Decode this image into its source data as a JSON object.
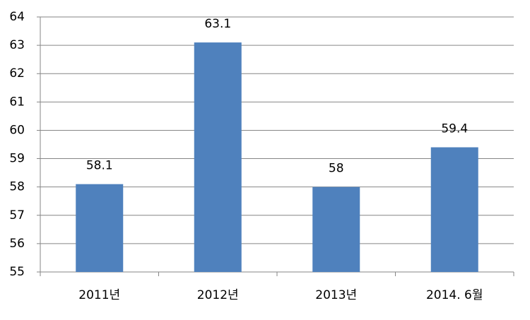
{
  "chart_data": {
    "type": "bar",
    "categories": [
      "2011년",
      "2012년",
      "2013년",
      "2014. 6월"
    ],
    "values": [
      58.1,
      63.1,
      58,
      59.4
    ],
    "color": "#4f81bd",
    "ylim": [
      55,
      64
    ],
    "yticks": [
      55,
      56,
      57,
      58,
      59,
      60,
      61,
      62,
      63,
      64
    ],
    "grid": true,
    "data_labels": true
  }
}
